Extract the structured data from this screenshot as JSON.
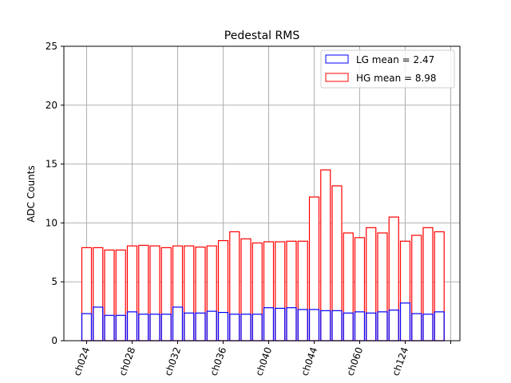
{
  "chart_data": {
    "type": "bar",
    "title": "Pedestal RMS",
    "xlabel": "",
    "ylabel": "ADC Counts",
    "ylim": [
      0,
      25
    ],
    "yticks": [
      0,
      5,
      10,
      15,
      20,
      25
    ],
    "grid": true,
    "legend_position": "top-right",
    "x_tick_labels": [
      "ch024",
      "ch028",
      "ch032",
      "ch036",
      "ch040",
      "ch044",
      "ch060",
      "ch124",
      ""
    ],
    "bar_count": 32,
    "series": [
      {
        "name": "LG mean = 2.47",
        "color": "#0000ff",
        "values": [
          2.3,
          2.85,
          2.15,
          2.15,
          2.45,
          2.25,
          2.25,
          2.25,
          2.85,
          2.35,
          2.35,
          2.5,
          2.4,
          2.25,
          2.25,
          2.25,
          2.8,
          2.75,
          2.8,
          2.65,
          2.65,
          2.55,
          2.55,
          2.35,
          2.45,
          2.35,
          2.45,
          2.6,
          3.2,
          2.3,
          2.25,
          2.45
        ]
      },
      {
        "name": "HG mean = 8.98",
        "color": "#ff0000",
        "values": [
          7.9,
          7.9,
          7.7,
          7.7,
          8.05,
          8.1,
          8.05,
          7.9,
          8.05,
          8.05,
          7.95,
          8.05,
          8.5,
          9.25,
          8.65,
          8.3,
          8.4,
          8.4,
          8.45,
          8.45,
          12.2,
          14.5,
          13.15,
          9.15,
          8.75,
          9.6,
          9.15,
          10.5,
          8.45,
          8.95,
          9.6,
          9.25
        ]
      }
    ]
  }
}
